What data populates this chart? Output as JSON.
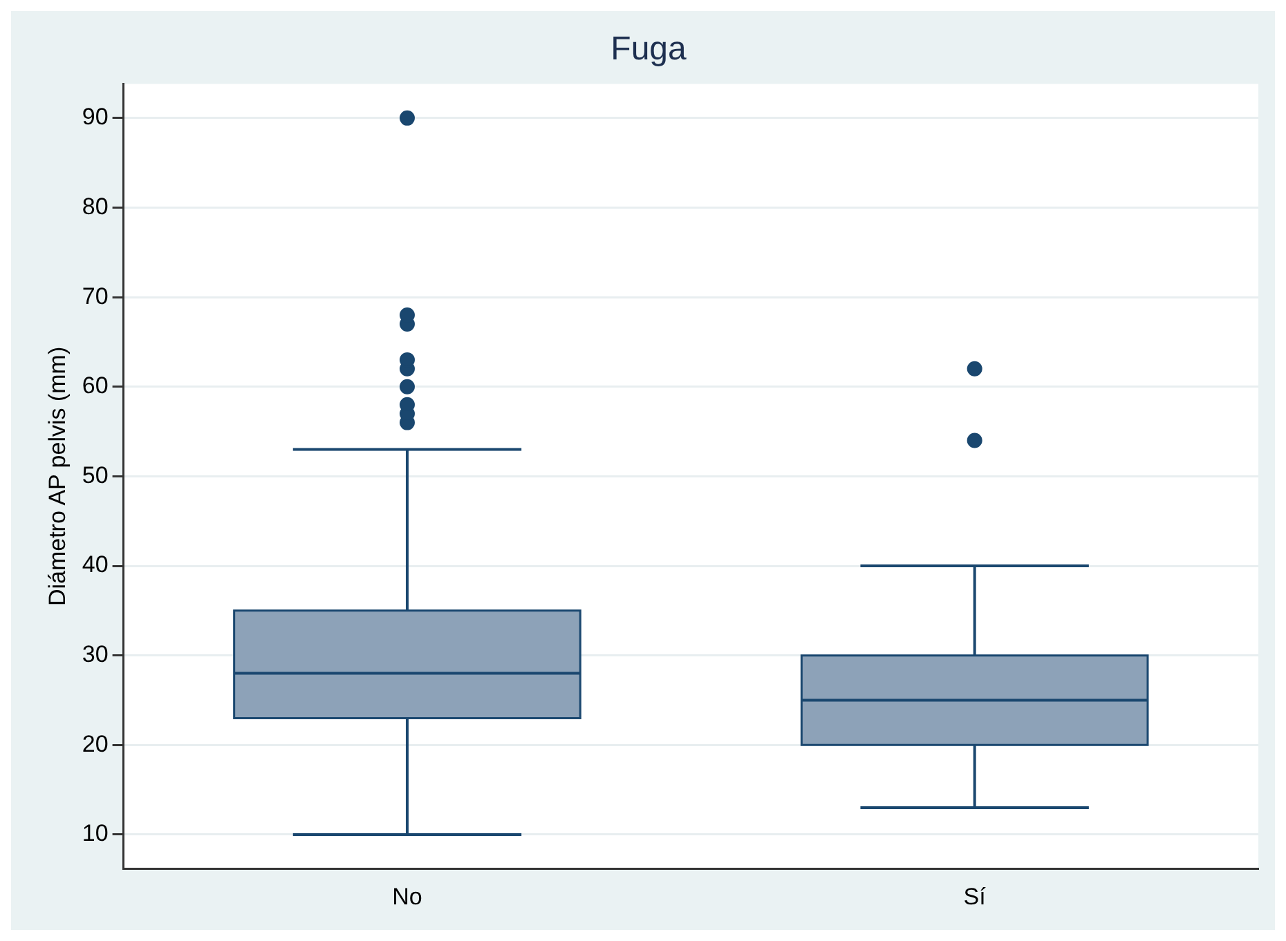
{
  "chart_data": {
    "type": "box",
    "title": "Fuga",
    "ylabel": "Diámetro AP pelvis (mm)",
    "categories": [
      "No",
      "Sí"
    ],
    "color": "#8da2b8",
    "boxes": [
      {
        "low": 10,
        "q1": 23,
        "median": 28,
        "q3": 35,
        "high": 53,
        "outliers": [
          56,
          57,
          58,
          60,
          62,
          63,
          67,
          68,
          90
        ]
      },
      {
        "low": 13,
        "q1": 20,
        "median": 25,
        "q3": 30,
        "high": 40,
        "outliers": [
          54,
          62
        ]
      }
    ],
    "ylim": [
      6.2,
      93.8
    ],
    "yticks": [
      10,
      20,
      30,
      40,
      50,
      60,
      70,
      80,
      90
    ],
    "grid": "y",
    "legend": false,
    "marker": "circle"
  }
}
